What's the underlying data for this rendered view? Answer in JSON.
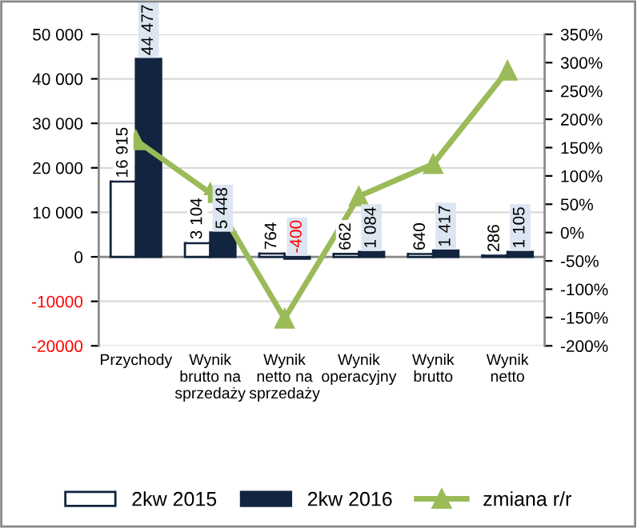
{
  "chart_data": {
    "type": "bar",
    "categories": [
      "Przychody",
      "Wynik\nbrutto na\nsprzedaży",
      "Wynik\nnetto na\nsprzedaży",
      "Wynik\noperacyjny",
      "Wynik\nbrutto",
      "Wynik\nnetto"
    ],
    "series": [
      {
        "name": "2kw 2015",
        "color": "#ffffff",
        "values": [
          16915,
          3104,
          764,
          662,
          640,
          286
        ],
        "value_labels": [
          "16 915",
          "3 104",
          "764",
          "662",
          "640",
          "286"
        ]
      },
      {
        "name": "2kw 2016",
        "color": "#12243f",
        "values": [
          44477,
          5448,
          -400,
          1084,
          1417,
          1105
        ],
        "value_labels": [
          "44 477",
          "5 448",
          "-400",
          "1 084",
          "1 417",
          "1 105"
        ]
      },
      {
        "name": "zmiana r/r",
        "type": "line",
        "axis": "y2",
        "color": "#9bbb59",
        "marker": "triangle",
        "values": [
          163,
          70,
          -152,
          64,
          121,
          286
        ]
      }
    ],
    "ylim": [
      -20000,
      50000
    ],
    "yticks": [
      {
        "value": -20000,
        "label": "-20000"
      },
      {
        "value": -10000,
        "label": "-10000"
      },
      0,
      {
        "value": 10000,
        "label": "10 000"
      },
      {
        "value": 20000,
        "label": "20 000"
      },
      {
        "value": 30000,
        "label": "30 000"
      },
      {
        "value": 40000,
        "label": "40 000"
      },
      {
        "value": 50000,
        "label": "50 000"
      }
    ],
    "y2lim": [
      -200,
      350
    ],
    "y2ticks": [
      {
        "value": -200,
        "label": "-200%"
      },
      {
        "value": -150,
        "label": "-150%"
      },
      {
        "value": -100,
        "label": "-100%"
      },
      {
        "value": -50,
        "label": "-50%"
      },
      {
        "value": 0,
        "label": "0%"
      },
      {
        "value": 50,
        "label": "50%"
      },
      {
        "value": 100,
        "label": "100%"
      },
      {
        "value": 150,
        "label": "150%"
      },
      {
        "value": 200,
        "label": "200%"
      },
      {
        "value": 250,
        "label": "250%"
      },
      {
        "value": 300,
        "label": "300%"
      },
      {
        "value": 350,
        "label": "350%"
      }
    ],
    "grid": "y",
    "legend": "bottom"
  }
}
